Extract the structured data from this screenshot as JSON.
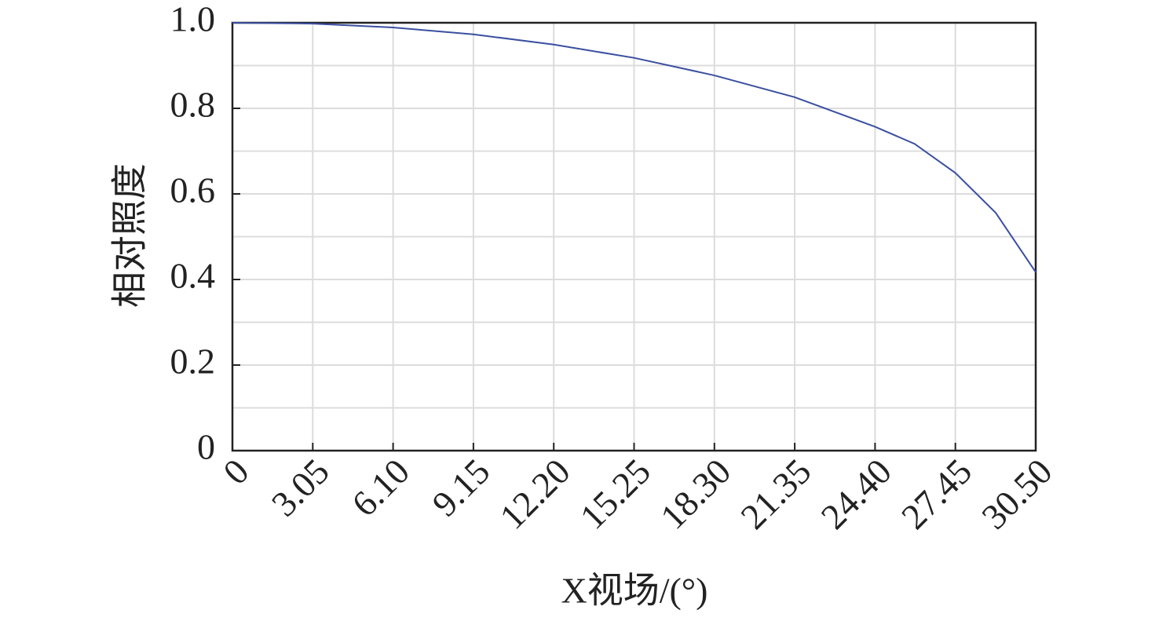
{
  "chart_data": {
    "type": "line",
    "xlabel": "X视场/(°)",
    "ylabel": "相对照度",
    "x": [
      0,
      3.05,
      6.1,
      9.15,
      12.2,
      15.25,
      18.3,
      21.35,
      24.4,
      25.9,
      27.45,
      28.98,
      30.5
    ],
    "series": [
      {
        "name": "相对照度",
        "color": "#3a4fa0",
        "values": [
          1.0,
          0.998,
          0.989,
          0.973,
          0.949,
          0.918,
          0.877,
          0.826,
          0.757,
          0.717,
          0.649,
          0.556,
          0.417
        ]
      }
    ],
    "xlim": [
      0,
      30.5
    ],
    "xticks": [
      0,
      3.05,
      {
        "value": 6.1,
        "label": "6.10"
      },
      9.15,
      {
        "value": 12.2,
        "label": "12.20"
      },
      15.25,
      {
        "value": 18.3,
        "label": "18.30"
      },
      21.35,
      {
        "value": 24.4,
        "label": "24.40"
      },
      27.45,
      {
        "value": 30.5,
        "label": "30.50"
      }
    ],
    "ylim": [
      0,
      1
    ],
    "yticks": [
      0,
      0.2,
      0.4,
      0.6,
      0.8,
      {
        "value": 1,
        "label": "1.0"
      }
    ],
    "y_minor_grid": [
      0.1,
      0.3,
      0.5,
      0.7,
      0.9
    ],
    "grid": true
  }
}
